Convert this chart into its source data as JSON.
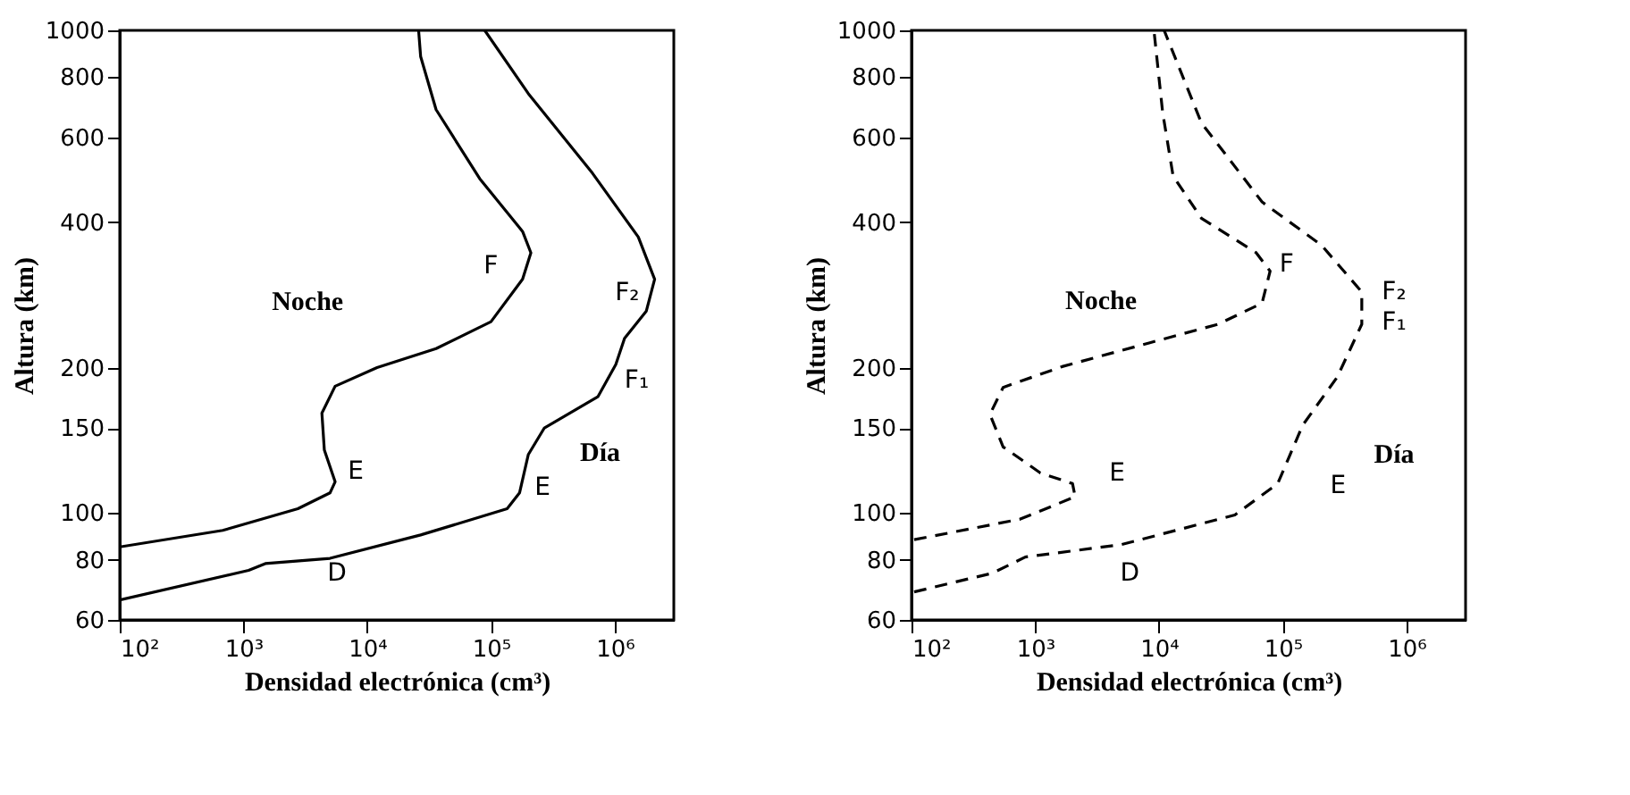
{
  "chart_data": [
    {
      "type": "line",
      "xlabel": "Densidad electrónica  (cm³)",
      "ylabel": "Altura  (km)",
      "line_style": "solid",
      "grid": false,
      "log": "xy",
      "xlim": [
        100,
        3000000
      ],
      "ylim": [
        60,
        1000
      ],
      "xticks": [
        {
          "value": 100,
          "label": "10²"
        },
        {
          "value": 1000,
          "label": "10³"
        },
        {
          "value": 10000,
          "label": "10⁴"
        },
        {
          "value": 100000,
          "label": "10⁵"
        },
        {
          "value": 1000000,
          "label": "10⁶"
        }
      ],
      "yticks": [
        60,
        80,
        100,
        150,
        200,
        400,
        600,
        800,
        1000
      ],
      "series": [
        {
          "color": "#000000",
          "x": [
            100,
            680,
            2750,
            5000,
            5500,
            4500,
            4300,
            5500,
            12000,
            36000,
            100000,
            180000,
            210000,
            180000,
            81000,
            36000,
            27000,
            26000
          ],
          "values": [
            85,
            92,
            102,
            110,
            116,
            135,
            161,
            183,
            200,
            219,
            249,
            305,
            346,
            383,
            493,
            685,
            883,
            1000
          ]
        },
        {
          "color": "#000000",
          "x": [
            100,
            1100,
            1500,
            5000,
            27000,
            135000,
            170000,
            200000,
            270000,
            730000,
            1020000,
            1200000,
            1800000,
            2100000,
            1550000,
            660000,
            200000,
            89000
          ],
          "values": [
            66,
            76,
            78.5,
            80.5,
            90,
            102,
            110,
            132,
            150,
            174,
            203,
            230,
            262,
            305,
            373,
            506,
            740,
            1000
          ]
        }
      ],
      "annotations": [
        "F",
        "F₂",
        "F₁",
        "E",
        "E",
        "D",
        "Noche",
        "Día"
      ]
    },
    {
      "type": "line",
      "xlabel": "Densidad electrónica  (cm³)",
      "ylabel": "Altura  (km)",
      "line_style": "dashed",
      "grid": false,
      "log": "xy",
      "xlim": [
        100,
        3000000
      ],
      "ylim": [
        60,
        1000
      ],
      "xticks": [
        {
          "value": 100,
          "label": "10²"
        },
        {
          "value": 1000,
          "label": "10³"
        },
        {
          "value": 10000,
          "label": "10⁴"
        },
        {
          "value": 100000,
          "label": "10⁵"
        },
        {
          "value": 1000000,
          "label": "10⁶"
        }
      ],
      "yticks": [
        60,
        80,
        100,
        150,
        200,
        400,
        600,
        800,
        1000
      ],
      "series": [
        {
          "color": "#000000",
          "x": [
            105,
            750,
            2100,
            2000,
            1100,
            550,
            430,
            550,
            1650,
            8300,
            30000,
            68000,
            79000,
            61000,
            22000,
            13000,
            10700,
            9100
          ],
          "values": [
            88,
            97,
            108,
            115,
            121,
            137,
            160,
            182,
            201,
            225,
            246,
            272,
            317,
            346,
            408,
            499,
            676,
            1000
          ]
        },
        {
          "color": "#000000",
          "x": [
            105,
            450,
            830,
            5000,
            41000,
            91000,
            145000,
            275000,
            435000,
            435000,
            205000,
            68000,
            22000,
            11000
          ],
          "values": [
            68.6,
            75,
            81,
            86,
            99,
            115,
            152,
            191,
            246,
            287,
            359,
            441,
            643,
            1000
          ]
        }
      ],
      "annotations": [
        "F",
        "F₂",
        "F₁",
        "E",
        "E",
        "D",
        "Noche",
        "Día"
      ]
    }
  ]
}
